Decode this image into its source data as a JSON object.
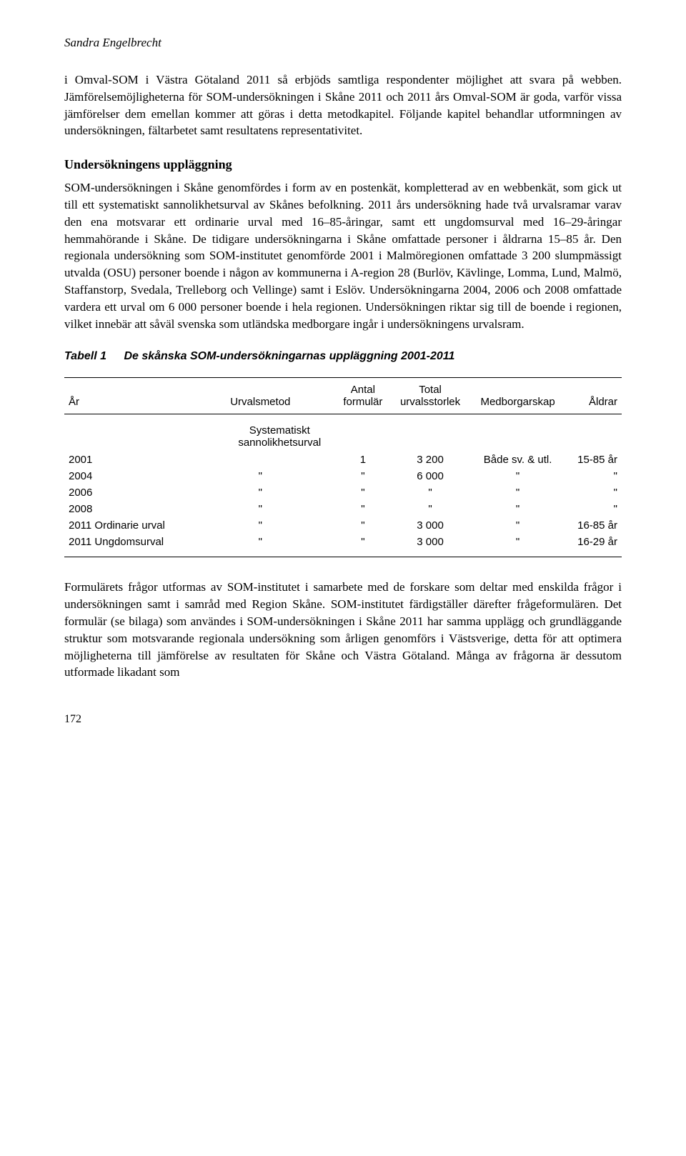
{
  "author": "Sandra Engelbrecht",
  "intro": "i Omval-SOM i Västra Götaland 2011 så erbjöds samtliga respondenter möjlighet att svara på webben. Jämförelsemöjligheterna för SOM-undersökningen i Skåne 2011 och 2011 års Omval-SOM är goda, varför vissa jämförelser dem emellan kommer att göras i detta metodkapitel. Följande kapitel behandlar utformningen av undersökningen, fältarbetet samt resultatens representativitet.",
  "section_heading": "Undersökningens uppläggning",
  "body": "SOM-undersökningen i Skåne genomfördes i form av en postenkät, kompletterad av en webbenkät, som gick ut till ett systematiskt sannolikhetsurval av Skånes befolkning. 2011 års undersökning hade två urvalsramar varav den ena motsvarar ett ordinarie urval med 16–85-åringar, samt ett ungdomsurval med 16–29-åringar hemmahörande i Skåne. De tidigare undersökningarna i Skåne omfattade personer i åldrarna 15–85 år. Den regionala undersökning som SOM-institutet genomförde 2001 i Malmöregionen omfattade 3 200 slumpmässigt utvalda (OSU) personer boende i någon av kommunerna i A-region 28 (Burlöv, Kävlinge, Lomma, Lund, Malmö, Staffanstorp, Svedala, Trelleborg och Vellinge) samt i Eslöv. Undersökningarna 2004, 2006 och 2008 omfattade vardera ett urval om 6 000 personer boende i hela regionen. Undersökningen riktar sig till de boende i regionen, vilket innebär att såväl svenska som utländska medborgare ingår i undersökningens urvalsram.",
  "table": {
    "label": "Tabell 1",
    "caption": "De skånska SOM-undersökningarnas uppläggning 2001-2011",
    "headers": {
      "year": "År",
      "method": "Urvalsmetod",
      "forms": "Antal formulär",
      "total": "Total urvalsstorlek",
      "citizenship": "Medborgarskap",
      "ages": "Åldrar"
    },
    "method_label": "Systematiskt sannolikhetsurval",
    "rows": [
      {
        "year": "2001",
        "method": "",
        "forms": "1",
        "total": "3 200",
        "citizenship": "Både sv. & utl.",
        "ages": "15-85 år"
      },
      {
        "year": "2004",
        "method": "\"",
        "forms": "\"",
        "total": "6 000",
        "citizenship": "\"",
        "ages": "\""
      },
      {
        "year": "2006",
        "method": "\"",
        "forms": "\"",
        "total": "\"",
        "citizenship": "\"",
        "ages": "\""
      },
      {
        "year": "2008",
        "method": "\"",
        "forms": "\"",
        "total": "\"",
        "citizenship": "\"",
        "ages": "\""
      },
      {
        "year": "2011 Ordinarie urval",
        "method": "\"",
        "forms": "\"",
        "total": "3 000",
        "citizenship": "\"",
        "ages": "16-85 år"
      },
      {
        "year": "2011 Ungdomsurval",
        "method": "\"",
        "forms": "\"",
        "total": "3 000",
        "citizenship": "\"",
        "ages": "16-29 år"
      }
    ]
  },
  "closing": "Formulärets frågor utformas av SOM-institutet i samarbete med de forskare som deltar med enskilda frågor i undersökningen samt i samråd med Region Skåne. SOM-institutet färdigställer därefter frågeformulären. Det formulär (se bilaga) som användes i SOM-undersökningen i Skåne 2011 har samma upplägg och grundläggande struktur som motsvarande regionala undersökning som årligen genomförs i Västsverige, detta för att optimera möjligheterna till jämförelse av resultaten för Skåne och Västra Götaland. Många av frågorna är dessutom utformade likadant som",
  "page_number": "172"
}
